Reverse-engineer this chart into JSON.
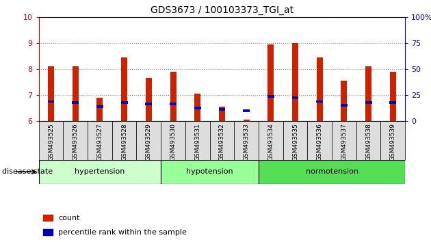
{
  "title": "GDS3673 / 100103373_TGI_at",
  "samples": [
    "GSM493525",
    "GSM493526",
    "GSM493527",
    "GSM493528",
    "GSM493529",
    "GSM493530",
    "GSM493531",
    "GSM493532",
    "GSM493533",
    "GSM493534",
    "GSM493535",
    "GSM493536",
    "GSM493537",
    "GSM493538",
    "GSM493539"
  ],
  "red_values": [
    8.1,
    8.1,
    6.9,
    8.45,
    7.65,
    7.9,
    7.05,
    6.55,
    6.05,
    8.95,
    9.0,
    8.45,
    7.55,
    8.1,
    7.9
  ],
  "blue_values": [
    6.75,
    6.7,
    6.55,
    6.7,
    6.65,
    6.65,
    6.5,
    6.45,
    6.4,
    6.95,
    6.9,
    6.75,
    6.6,
    6.7,
    6.7
  ],
  "ylim": [
    6,
    10
  ],
  "yticks": [
    6,
    7,
    8,
    9,
    10
  ],
  "right_ytick_positions": [
    0,
    25,
    50,
    75,
    100
  ],
  "right_ytick_labels": [
    "0",
    "25",
    "50",
    "75",
    "100%"
  ],
  "groups": [
    {
      "label": "hypertension",
      "start": 0,
      "end": 5,
      "color": "#ccffcc"
    },
    {
      "label": "hypotension",
      "start": 5,
      "end": 9,
      "color": "#99ff99"
    },
    {
      "label": "normotension",
      "start": 9,
      "end": 15,
      "color": "#55dd55"
    }
  ],
  "bar_width": 0.25,
  "red_color": "#cc2200",
  "blue_color": "#0000bb",
  "grid_color": "#888888",
  "background_color": "#ffffff",
  "left_tick_color": "#cc0000",
  "right_tick_color": "#0000cc",
  "disease_state_label": "disease state",
  "legend_items": [
    {
      "label": "count",
      "color": "#cc2200"
    },
    {
      "label": "percentile rank within the sample",
      "color": "#0000bb"
    }
  ],
  "xtick_bg_color": "#dddddd",
  "title_fontsize": 10,
  "tick_fontsize": 8,
  "label_fontsize": 8
}
